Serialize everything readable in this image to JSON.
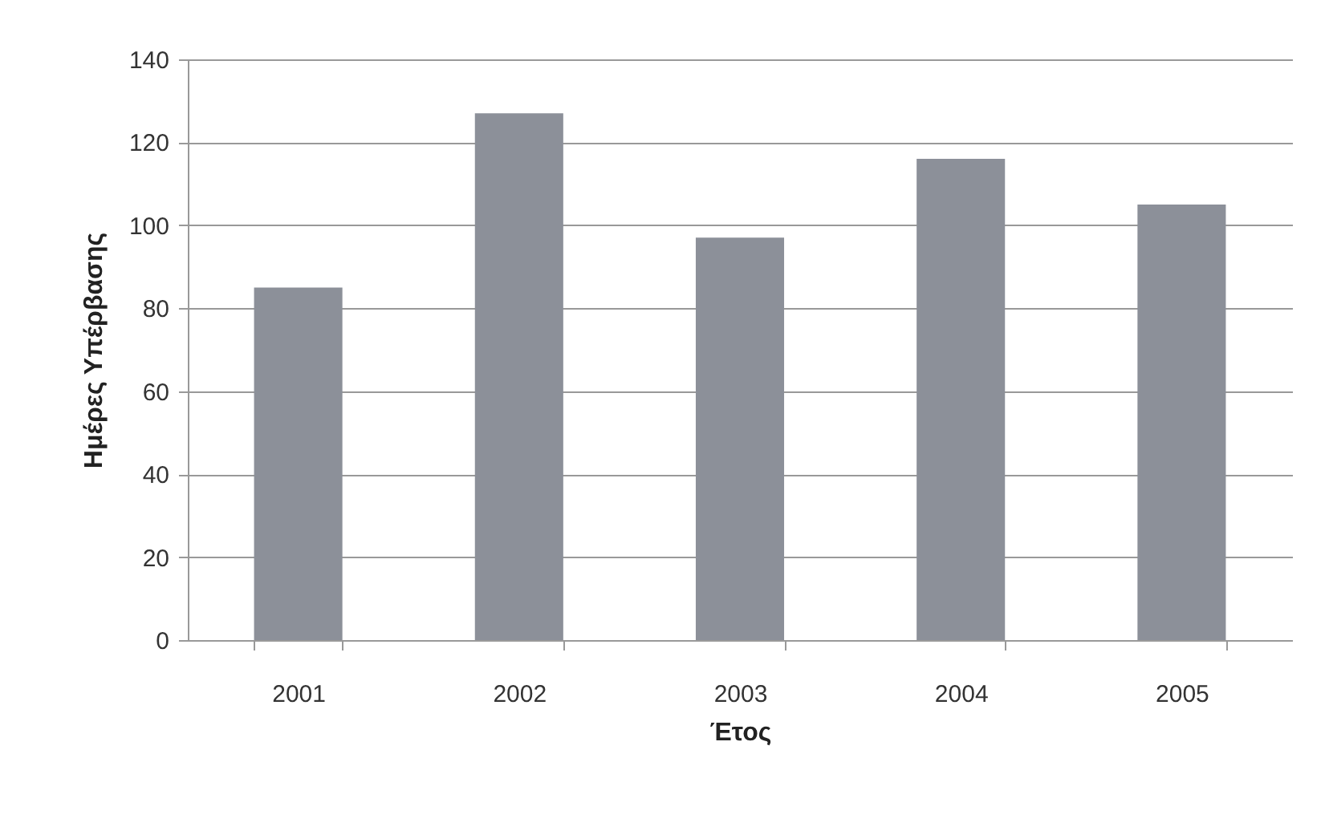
{
  "chart_data": {
    "type": "bar",
    "xlabel": "Έτος",
    "ylabel": "Ημέρες Υπέρβασης",
    "categories": [
      "2001",
      "2002",
      "2003",
      "2004",
      "2005"
    ],
    "values": [
      85,
      127,
      97,
      116,
      105
    ],
    "color": "#8c9099",
    "ylim": [
      0,
      140
    ],
    "yticks": [
      0,
      20,
      40,
      60,
      80,
      100,
      120,
      140
    ],
    "grid": "y"
  }
}
